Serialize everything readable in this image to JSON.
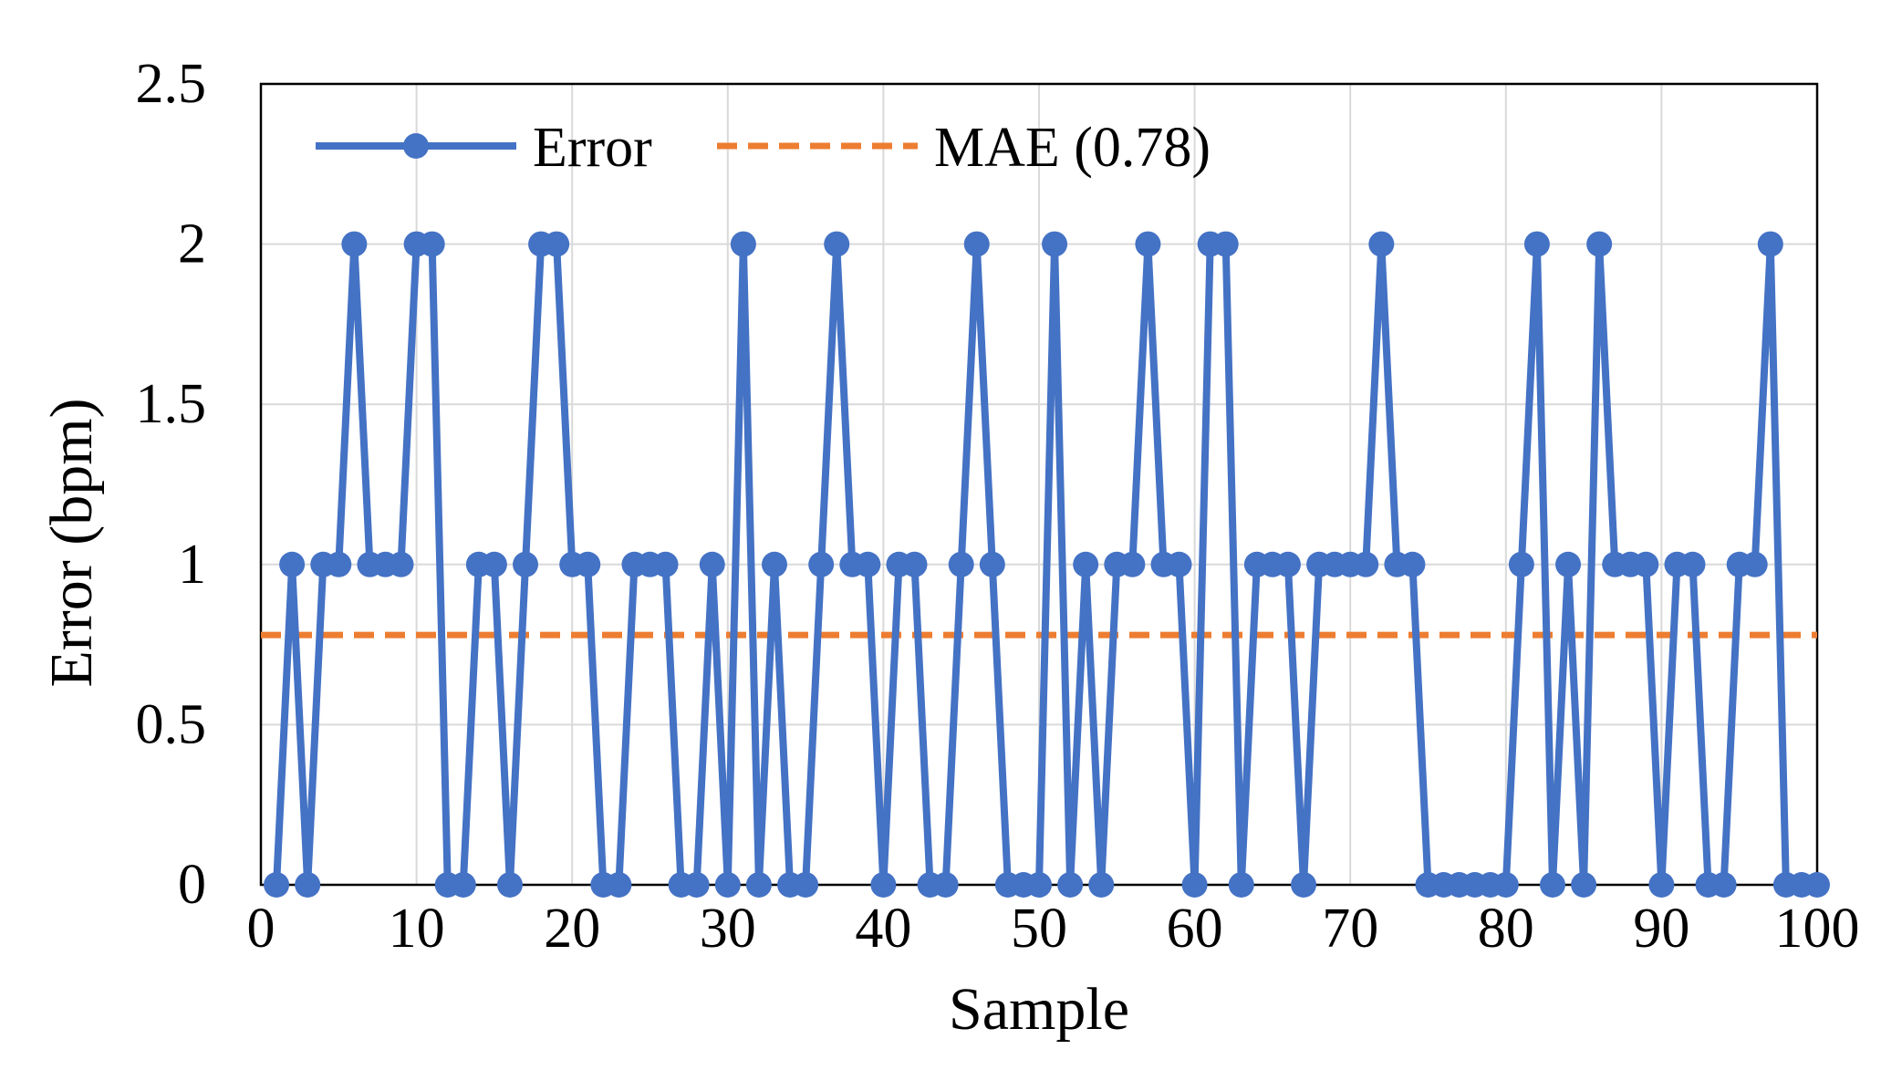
{
  "chart_data": {
    "type": "line",
    "title": "",
    "xlabel": "Sample",
    "ylabel": "Error (bpm)",
    "xlim": [
      0,
      100
    ],
    "ylim": [
      0,
      2.5
    ],
    "x_ticks": [
      "0",
      "10",
      "20",
      "30",
      "40",
      "50",
      "60",
      "70",
      "80",
      "90",
      "100"
    ],
    "y_ticks": [
      "0",
      "0.5",
      "1",
      "1.5",
      "2",
      "2.5"
    ],
    "grid": true,
    "legend_position": "top-left",
    "series": [
      {
        "name": "Error",
        "style": "line-with-markers",
        "color": "#4472C4",
        "x": [
          1,
          2,
          3,
          4,
          5,
          6,
          7,
          8,
          9,
          10,
          11,
          12,
          13,
          14,
          15,
          16,
          17,
          18,
          19,
          20,
          21,
          22,
          23,
          24,
          25,
          26,
          27,
          28,
          29,
          30,
          31,
          32,
          33,
          34,
          35,
          36,
          37,
          38,
          39,
          40,
          41,
          42,
          43,
          44,
          45,
          46,
          47,
          48,
          49,
          50,
          51,
          52,
          53,
          54,
          55,
          56,
          57,
          58,
          59,
          60,
          61,
          62,
          63,
          64,
          65,
          66,
          67,
          68,
          69,
          70,
          71,
          72,
          73,
          74,
          75,
          76,
          77,
          78,
          79,
          80,
          81,
          82,
          83,
          84,
          85,
          86,
          87,
          88,
          89,
          90,
          91,
          92,
          93,
          94,
          95,
          96,
          97,
          98,
          99,
          100
        ],
        "values": [
          0,
          1,
          0,
          1,
          1,
          2,
          1,
          1,
          1,
          2,
          2,
          0,
          0,
          1,
          1,
          0,
          1,
          2,
          2,
          1,
          1,
          0,
          0,
          1,
          1,
          1,
          0,
          0,
          1,
          0,
          2,
          0,
          1,
          0,
          0,
          1,
          2,
          1,
          1,
          0,
          1,
          1,
          0,
          0,
          1,
          2,
          1,
          0,
          0,
          0,
          2,
          0,
          1,
          0,
          1,
          1,
          2,
          1,
          1,
          0,
          2,
          2,
          0,
          1,
          1,
          1,
          0,
          1,
          1,
          1,
          1,
          2,
          1,
          1,
          0,
          0,
          0,
          0,
          0,
          0,
          1,
          2,
          0,
          1,
          0,
          2,
          1,
          1,
          1,
          0,
          1,
          1,
          0,
          0,
          1,
          1,
          2,
          0,
          0,
          0
        ]
      },
      {
        "name": "MAE (0.78)",
        "style": "dashed-line",
        "color": "#ED7D31",
        "x": [
          0,
          100
        ],
        "values": [
          0.78,
          0.78
        ]
      }
    ],
    "legend": [
      {
        "label": "Error",
        "color": "#4472C4",
        "marker": "line-with-marker"
      },
      {
        "label": "MAE (0.78)",
        "color": "#ED7D31",
        "marker": "dashed-line"
      }
    ]
  }
}
